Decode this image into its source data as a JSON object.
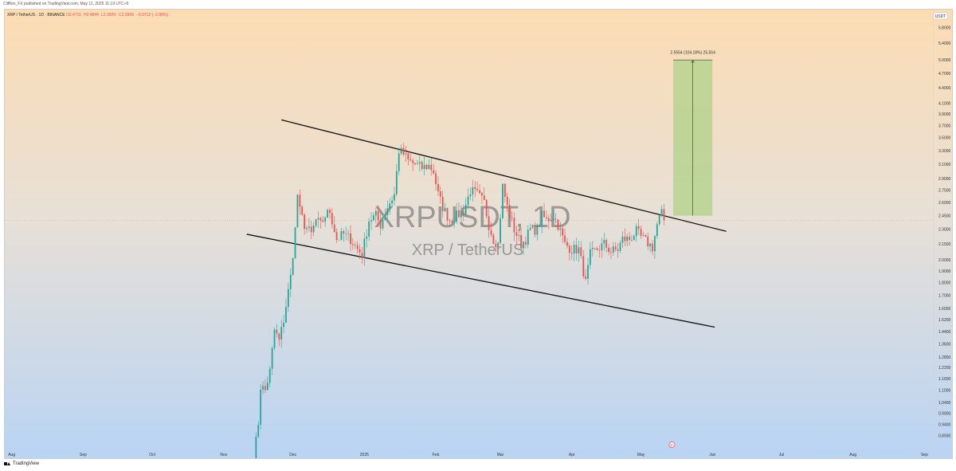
{
  "header": {
    "publisher_line": "Cliffton_FX published on TradingView.com, May 11, 2025 11:19 UTC+5"
  },
  "legend": {
    "symbol": "XRP / TetherUS · 1D · BINANCE",
    "open": "O2.4711",
    "high": "H2.4844",
    "low": "L2.3829",
    "close": "C2.3999",
    "change": "−0.0712 (−2.88%)"
  },
  "watermark": {
    "main": "XRPUSDT, 1D",
    "sub": "XRP / TetherUS"
  },
  "target_label": "2.5554 (104.18%) 25,554",
  "currency_label": "USDT",
  "event_marker": "E",
  "footer": {
    "brand": "TradingView"
  },
  "colors": {
    "up": "#26a69a",
    "down": "#ef5350",
    "target_box": "#b6d48f",
    "bg_top": "#fcdcb2",
    "bg_bottom": "#b9d4f4"
  },
  "chart_data": {
    "type": "candlestick",
    "title": "",
    "xlabel": "",
    "ylabel": "",
    "y_scale": "log",
    "ylim": [
      0.83,
      6.3
    ],
    "y_ticks": [
      "5.8000",
      "5.4000",
      "5.0000",
      "4.7000",
      "4.4000",
      "4.1000",
      "3.9000",
      "3.7000",
      "3.5000",
      "3.3000",
      "3.1000",
      "2.9000",
      "2.7500",
      "2.6000",
      "2.4500",
      "2.3000",
      "2.1500",
      "2.0000",
      "1.9000",
      "1.8000",
      "1.7000",
      "1.6000",
      "1.5200",
      "1.4400",
      "1.3600",
      "1.2800",
      "1.2200",
      "1.1600",
      "1.1000",
      "1.0400",
      "0.9900",
      "0.9400",
      "0.8930"
    ],
    "x_ticks": [
      "Aug",
      "Sep",
      "Oct",
      "Nov",
      "Dec",
      "2025",
      "Feb",
      "Mar",
      "Apr",
      "May",
      "Jun",
      "Jul",
      "Aug",
      "Sep"
    ],
    "x_tick_dates": [
      "2024-08-01",
      "2024-09-01",
      "2024-10-01",
      "2024-11-01",
      "2024-12-01",
      "2025-01-01",
      "2025-02-01",
      "2025-03-01",
      "2025-04-01",
      "2025-05-01",
      "2025-06-01",
      "2025-07-01",
      "2025-08-01",
      "2025-09-01"
    ],
    "xlim": [
      "2024-07-29",
      "2025-09-05"
    ],
    "anchors": [
      [
        "2024-11-14",
        0.8
      ],
      [
        "2024-11-16",
        0.95
      ],
      [
        "2024-11-17",
        1.12
      ],
      [
        "2024-11-19",
        1.1
      ],
      [
        "2024-11-21",
        1.2
      ],
      [
        "2024-11-23",
        1.45
      ],
      [
        "2024-11-25",
        1.38
      ],
      [
        "2024-11-27",
        1.52
      ],
      [
        "2024-11-30",
        1.85
      ],
      [
        "2024-12-02",
        2.3
      ],
      [
        "2024-12-03",
        2.7
      ],
      [
        "2024-12-04",
        2.5
      ],
      [
        "2024-12-06",
        2.35
      ],
      [
        "2024-12-09",
        2.25
      ],
      [
        "2024-12-11",
        2.4
      ],
      [
        "2024-12-13",
        2.35
      ],
      [
        "2024-12-15",
        2.45
      ],
      [
        "2024-12-17",
        2.5
      ],
      [
        "2024-12-20",
        2.2
      ],
      [
        "2024-12-23",
        2.25
      ],
      [
        "2024-12-26",
        2.2
      ],
      [
        "2024-12-29",
        2.1
      ],
      [
        "2024-12-31",
        2.05
      ],
      [
        "2025-01-03",
        2.4
      ],
      [
        "2025-01-06",
        2.45
      ],
      [
        "2025-01-08",
        2.35
      ],
      [
        "2025-01-11",
        2.55
      ],
      [
        "2025-01-14",
        2.7
      ],
      [
        "2025-01-16",
        3.3
      ],
      [
        "2025-01-18",
        3.25
      ],
      [
        "2025-01-20",
        3.15
      ],
      [
        "2025-01-23",
        3.1
      ],
      [
        "2025-01-26",
        3.05
      ],
      [
        "2025-01-29",
        3.08
      ],
      [
        "2025-01-31",
        3.0
      ],
      [
        "2025-02-02",
        2.7
      ],
      [
        "2025-02-04",
        2.55
      ],
      [
        "2025-02-07",
        2.4
      ],
      [
        "2025-02-10",
        2.45
      ],
      [
        "2025-02-13",
        2.5
      ],
      [
        "2025-02-16",
        2.75
      ],
      [
        "2025-02-19",
        2.7
      ],
      [
        "2025-02-22",
        2.6
      ],
      [
        "2025-02-24",
        2.35
      ],
      [
        "2025-02-26",
        2.2
      ],
      [
        "2025-02-28",
        2.15
      ],
      [
        "2025-03-02",
        2.8
      ],
      [
        "2025-03-04",
        2.55
      ],
      [
        "2025-03-07",
        2.3
      ],
      [
        "2025-03-10",
        2.15
      ],
      [
        "2025-03-12",
        2.2
      ],
      [
        "2025-03-14",
        2.3
      ],
      [
        "2025-03-17",
        2.3
      ],
      [
        "2025-03-19",
        2.45
      ],
      [
        "2025-03-21",
        2.4
      ],
      [
        "2025-03-24",
        2.45
      ],
      [
        "2025-03-26",
        2.35
      ],
      [
        "2025-03-29",
        2.15
      ],
      [
        "2025-04-01",
        2.1
      ],
      [
        "2025-04-04",
        2.1
      ],
      [
        "2025-04-06",
        1.9
      ],
      [
        "2025-04-07",
        1.8
      ],
      [
        "2025-04-09",
        2.05
      ],
      [
        "2025-04-12",
        2.1
      ],
      [
        "2025-04-15",
        2.15
      ],
      [
        "2025-04-18",
        2.08
      ],
      [
        "2025-04-21",
        2.1
      ],
      [
        "2025-04-23",
        2.2
      ],
      [
        "2025-04-26",
        2.2
      ],
      [
        "2025-04-29",
        2.28
      ],
      [
        "2025-05-01",
        2.22
      ],
      [
        "2025-05-03",
        2.18
      ],
      [
        "2025-05-06",
        2.12
      ],
      [
        "2025-05-08",
        2.35
      ],
      [
        "2025-05-09",
        2.42
      ],
      [
        "2025-05-10",
        2.47
      ],
      [
        "2025-05-11",
        2.4
      ]
    ],
    "trendlines": [
      {
        "name": "upper",
        "start": [
          "2024-11-26",
          3.8
        ],
        "end": [
          "2025-06-07",
          2.28
        ]
      },
      {
        "name": "lower",
        "start": [
          "2024-11-11",
          2.25
        ],
        "end": [
          "2025-06-02",
          1.47
        ]
      }
    ],
    "target_zone": {
      "start": "2025-05-15",
      "end": "2025-06-01",
      "low": 2.45,
      "high": 5.0
    },
    "current_price": 2.4
  }
}
